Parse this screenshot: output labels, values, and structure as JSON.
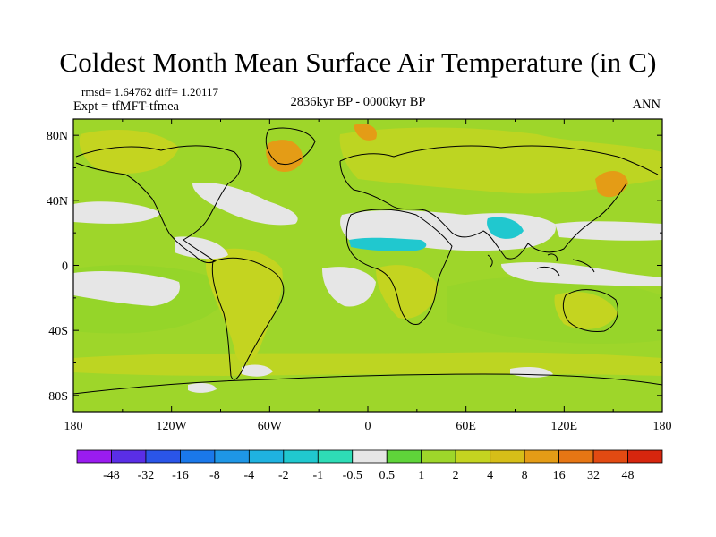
{
  "title": "Coldest Month Mean Surface Air Temperature (in C)",
  "stats": "rmsd= 1.64762 diff= 1.20117",
  "experiment": "Expt = tfMFT-tfmea",
  "period": "2836kyr BP - 0000kyr BP",
  "season": "ANN",
  "axes": {
    "lon_ticks": [
      "180",
      "120W",
      "60W",
      "0",
      "60E",
      "120E",
      "180"
    ],
    "lat_ticks": [
      "80N",
      "40N",
      "0",
      "40S",
      "80S"
    ]
  },
  "colorbar": {
    "labels": [
      "-48",
      "-32",
      "-16",
      "-8",
      "-4",
      "-2",
      "-1",
      "-0.5",
      "0.5",
      "1",
      "2",
      "4",
      "8",
      "16",
      "32",
      "48"
    ],
    "colors": [
      "#9a1cf0",
      "#5a2ee6",
      "#2a55e8",
      "#1a78ea",
      "#1e96e6",
      "#1fb2e0",
      "#20c8cf",
      "#2edcb6",
      "#e6e6e6",
      "#5fd43a",
      "#9ed62a",
      "#c4d420",
      "#d6be18",
      "#e49c16",
      "#e67614",
      "#e24a12",
      "#d6260e"
    ]
  },
  "colors": {
    "ocean_base": "#9ed62a",
    "land_warm": "#c4d420",
    "near_zero": "#e6e6e6",
    "cool": "#20c8cf",
    "warm": "#e49c16"
  }
}
